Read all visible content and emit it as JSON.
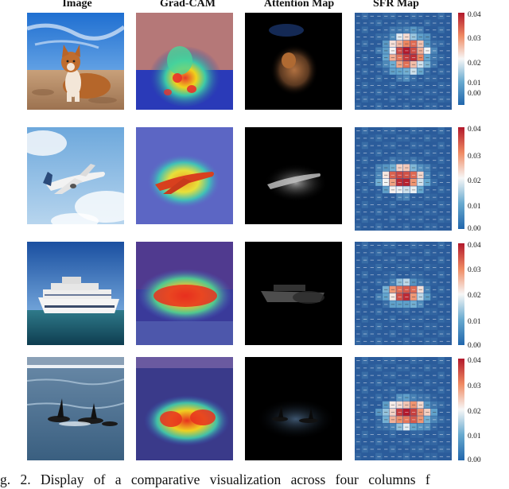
{
  "columns": [
    "Image",
    "Grad-CAM",
    "Attention Map",
    "SFR Map"
  ],
  "rows": [
    {
      "subject": "dog"
    },
    {
      "subject": "airplane"
    },
    {
      "subject": "cruise ship"
    },
    {
      "subject": "orcas"
    }
  ],
  "colorbars": [
    {
      "ticks": [
        "0.04",
        "0.03",
        "0.02",
        "0.01",
        "0.00"
      ]
    },
    {
      "ticks": [
        "0.04",
        "0.03",
        "0.02",
        "0.01",
        "0.00"
      ]
    },
    {
      "ticks": [
        "0.04",
        "0.03",
        "0.02",
        "0.01",
        "0.00"
      ]
    },
    {
      "ticks": [
        "0.04",
        "0.03",
        "0.02",
        "0.01",
        "0.00"
      ]
    }
  ],
  "caption": "g.  2.   Display  of  a  comparative  visualization  across  four  columns  f"
}
